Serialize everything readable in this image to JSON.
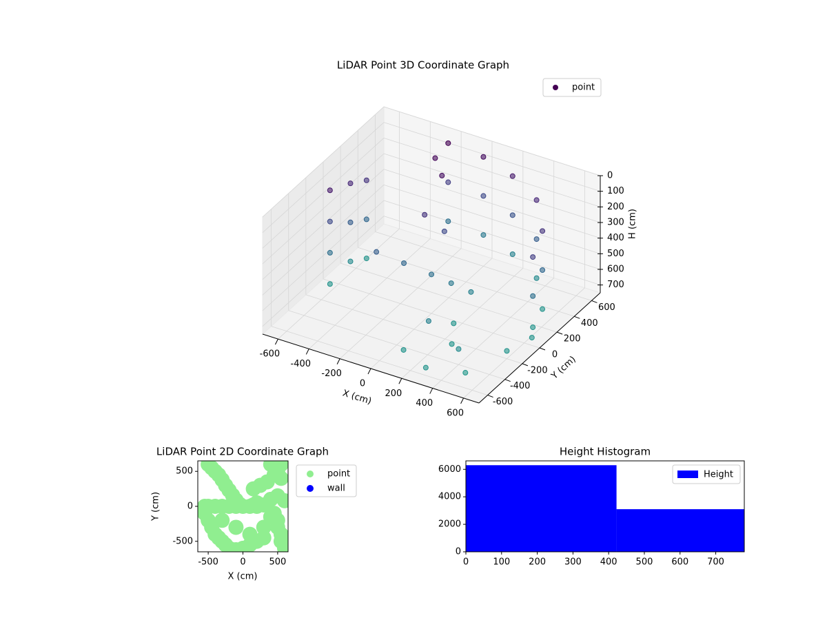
{
  "chart_data": [
    {
      "type": "scatter3d",
      "title": "LiDAR Point 3D Coordinate Graph",
      "xlabel": "X (cm)",
      "ylabel": "Y (cm)",
      "zlabel": "H (cm)",
      "xlim": [
        -700,
        700
      ],
      "ylim": [
        -700,
        700
      ],
      "zlim": [
        0,
        750
      ],
      "z_inverted": true,
      "xticks": [
        -600,
        -400,
        -200,
        0,
        200,
        400,
        600
      ],
      "yticks": [
        -600,
        -400,
        -200,
        0,
        200,
        400,
        600
      ],
      "zticks": [
        0,
        100,
        200,
        300,
        400,
        500,
        600,
        700
      ],
      "colormap": "viridis",
      "legend": "upper right",
      "grid": true,
      "series": [
        {
          "name": "point",
          "color": "#440154",
          "x": [
            -600,
            -600,
            -600,
            -600,
            -580,
            -580,
            -580,
            -560,
            -560,
            -560,
            -200,
            -200,
            -200,
            0,
            0,
            0,
            200,
            200,
            200,
            400,
            400,
            400,
            550,
            550,
            550,
            600,
            600,
            600,
            -300,
            -150,
            0,
            100,
            200,
            -100,
            0,
            300,
            400,
            500,
            300,
            100,
            600,
            650,
            -100,
            -200,
            200,
            150
          ],
          "y": [
            -100,
            -100,
            -100,
            -100,
            100,
            100,
            100,
            250,
            250,
            250,
            550,
            550,
            550,
            600,
            600,
            600,
            580,
            580,
            580,
            500,
            500,
            500,
            300,
            300,
            300,
            100,
            100,
            100,
            -100,
            -50,
            0,
            50,
            100,
            100,
            150,
            -300,
            -400,
            -500,
            -600,
            -500,
            -200,
            0,
            300,
            400,
            -100,
            -300
          ],
          "z": [
            100,
            300,
            500,
            700,
            150,
            400,
            650,
            200,
            450,
            700,
            0,
            250,
            500,
            50,
            300,
            550,
            100,
            350,
            600,
            150,
            400,
            650,
            200,
            450,
            700,
            250,
            500,
            700,
            400,
            450,
            500,
            550,
            600,
            200,
            300,
            700,
            650,
            720,
            700,
            700,
            700,
            700,
            50,
            20,
            700,
            600
          ]
        }
      ]
    },
    {
      "type": "scatter",
      "title": "LiDAR Point 2D Coordinate Graph",
      "xlabel": "X (cm)",
      "ylabel": "Y (cm)",
      "xlim": [
        -650,
        650
      ],
      "ylim": [
        -650,
        650
      ],
      "xticks": [
        -500,
        0,
        500
      ],
      "yticks": [
        -500,
        0,
        500
      ],
      "legend": "outside right",
      "series": [
        {
          "name": "point",
          "color": "#90ee90",
          "x": [
            -500,
            -450,
            -400,
            -350,
            -300,
            -250,
            -200,
            -150,
            -100,
            -50,
            -550,
            -550,
            -500,
            -450,
            -400,
            -350,
            -300,
            -250,
            -200,
            -150,
            -100,
            0,
            100,
            200,
            300,
            -500,
            -400,
            -300,
            -200,
            -100,
            0,
            100,
            200,
            300,
            400,
            500,
            550,
            -300,
            -100,
            100,
            300,
            450,
            500,
            550,
            600,
            150,
            200,
            400,
            500,
            600,
            150,
            250,
            350,
            450,
            550,
            400,
            500,
            550
          ],
          "y": [
            600,
            550,
            500,
            450,
            380,
            300,
            230,
            160,
            90,
            30,
            0,
            -100,
            -200,
            -300,
            -400,
            -450,
            -500,
            -550,
            -600,
            -620,
            -620,
            -600,
            -550,
            -500,
            -450,
            0,
            0,
            0,
            0,
            0,
            0,
            0,
            0,
            20,
            -150,
            -300,
            -500,
            -200,
            -300,
            -400,
            -300,
            -100,
            -200,
            -400,
            -600,
            20,
            50,
            100,
            150,
            80,
            250,
            300,
            350,
            450,
            600,
            600,
            500,
            400
          ]
        },
        {
          "name": "wall",
          "color": "#0000ff",
          "x": [],
          "y": []
        }
      ]
    },
    {
      "type": "histogram",
      "title": "Height Histogram",
      "bins": [
        0,
        422,
        780
      ],
      "values": [
        6300,
        3100
      ],
      "color": "#0000ff",
      "series_name": "Height",
      "xlim": [
        0,
        780
      ],
      "ylim": [
        0,
        6615
      ],
      "xticks": [
        0,
        100,
        200,
        300,
        400,
        500,
        600,
        700
      ],
      "yticks": [
        0,
        2000,
        4000,
        6000
      ],
      "legend": "upper right"
    }
  ]
}
